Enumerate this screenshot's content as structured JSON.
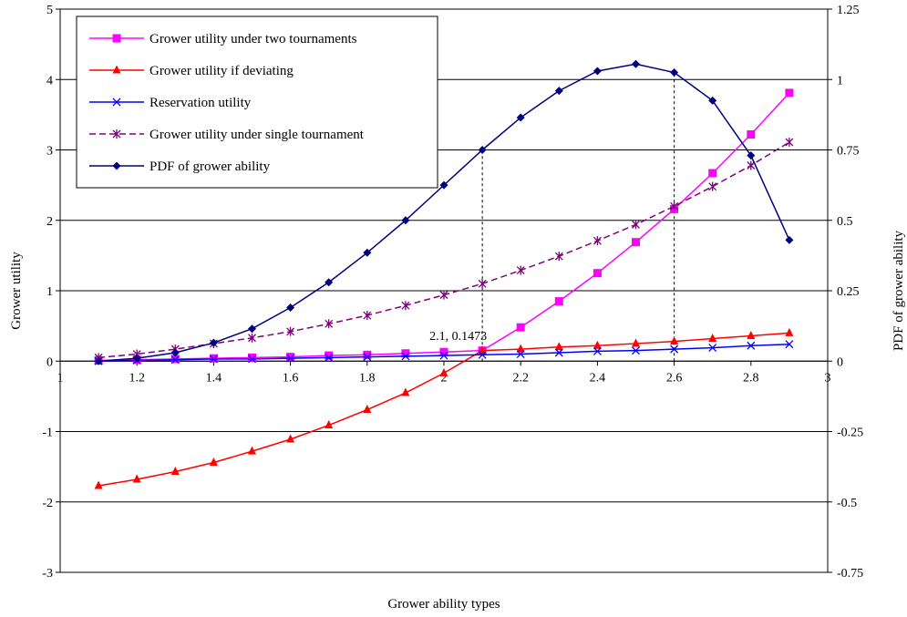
{
  "chart_data": {
    "type": "line",
    "xlabel": "Grower ability types",
    "ylabel": "Grower utility",
    "y2label": "PDF of grower ability",
    "xlim": [
      1,
      3
    ],
    "ylim": [
      -3,
      5
    ],
    "y2lim": [
      -0.75,
      1.25
    ],
    "xticks": [
      "1",
      "1.2",
      "1.4",
      "1.6",
      "1.8",
      "2",
      "2.2",
      "2.4",
      "2.6",
      "2.8",
      "3"
    ],
    "yticks": [
      "-3",
      "-2",
      "-1",
      "0",
      "1",
      "2",
      "3",
      "4",
      "5"
    ],
    "y2ticks": [
      "-0.75",
      "-0.5",
      "-0.25",
      "0",
      "0.25",
      "0.5",
      "0.75",
      "1",
      "1.25"
    ],
    "grid": "horizontal",
    "legend_position": "top-left",
    "x": [
      1.1,
      1.2,
      1.3,
      1.4,
      1.5,
      1.6,
      1.7,
      1.8,
      1.9,
      2.0,
      2.1,
      2.2,
      2.3,
      2.4,
      2.5,
      2.6,
      2.7,
      2.8,
      2.9
    ],
    "series": [
      {
        "name": "Grower utility under two tournaments",
        "axis": "left",
        "color": "#ff00ff",
        "marker": "square",
        "dash": "solid",
        "values": [
          0.01,
          0.02,
          0.03,
          0.04,
          0.05,
          0.06,
          0.08,
          0.09,
          0.11,
          0.13,
          0.15,
          0.48,
          0.85,
          1.25,
          1.69,
          2.16,
          2.67,
          3.22,
          3.81
        ]
      },
      {
        "name": "Grower utility if deviating",
        "axis": "left",
        "color": "#ff0000",
        "marker": "triangle",
        "dash": "solid",
        "values": [
          -1.77,
          -1.68,
          -1.57,
          -1.44,
          -1.28,
          -1.11,
          -0.91,
          -0.69,
          -0.45,
          -0.17,
          0.15,
          0.17,
          0.2,
          0.22,
          0.25,
          0.28,
          0.32,
          0.36,
          0.4
        ]
      },
      {
        "name": "Reservation utility",
        "axis": "left",
        "color": "#0000ff",
        "marker": "x",
        "dash": "solid",
        "values": [
          0.0,
          0.01,
          0.02,
          0.03,
          0.03,
          0.04,
          0.05,
          0.06,
          0.07,
          0.08,
          0.09,
          0.1,
          0.12,
          0.14,
          0.15,
          0.17,
          0.19,
          0.22,
          0.24
        ]
      },
      {
        "name": "Grower utility under single tournament",
        "axis": "left",
        "color": "#800080",
        "marker": "star",
        "dash": "dashed",
        "values": [
          0.05,
          0.1,
          0.17,
          0.25,
          0.33,
          0.42,
          0.53,
          0.65,
          0.79,
          0.94,
          1.1,
          1.29,
          1.49,
          1.71,
          1.94,
          2.2,
          2.48,
          2.78,
          3.11
        ]
      },
      {
        "name": "PDF of grower ability",
        "axis": "right",
        "color": "#000080",
        "marker": "diamond",
        "dash": "solid",
        "values": [
          0.0,
          0.01,
          0.03,
          0.065,
          0.115,
          0.19,
          0.28,
          0.385,
          0.5,
          0.625,
          0.75,
          0.865,
          0.96,
          1.03,
          1.055,
          1.025,
          0.925,
          0.73,
          0.43
        ]
      }
    ],
    "reference_lines": [
      {
        "x": 2.1,
        "y2_top": 0.75
      },
      {
        "x": 2.6,
        "y2_top": 1.025
      }
    ],
    "annotations": [
      {
        "text": "2.1, 0.1473",
        "x": 2.1,
        "y": 0.1473
      }
    ]
  }
}
